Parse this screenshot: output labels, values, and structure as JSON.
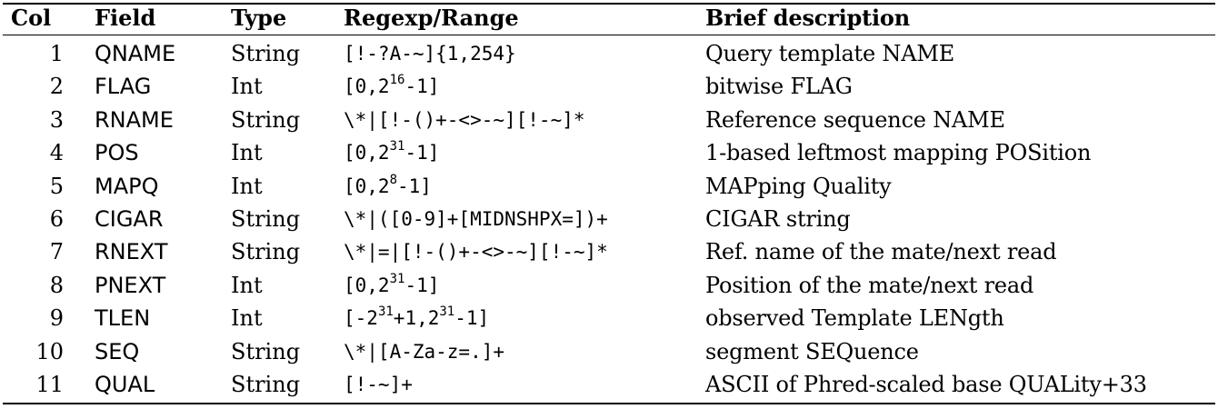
{
  "headers": {
    "col": "Col",
    "field": "Field",
    "type": "Type",
    "range": "Regexp/Range",
    "description": "Brief description"
  },
  "rows": [
    {
      "col": "1",
      "field": "QNAME",
      "type": "String",
      "range": "[!-?A-~]{1,254}",
      "description": "Query template NAME"
    },
    {
      "col": "2",
      "field": "FLAG",
      "type": "Int",
      "range": "[0,2^16-1]",
      "description": "bitwise FLAG"
    },
    {
      "col": "3",
      "field": "RNAME",
      "type": "String",
      "range": "\\*|[!-()+-<>-~][!-~]*",
      "description": "Reference sequence NAME"
    },
    {
      "col": "4",
      "field": "POS",
      "type": "Int",
      "range": "[0,2^31-1]",
      "description": "1-based leftmost mapping POSition"
    },
    {
      "col": "5",
      "field": "MAPQ",
      "type": "Int",
      "range": "[0,2^8-1]",
      "description": "MAPping Quality"
    },
    {
      "col": "6",
      "field": "CIGAR",
      "type": "String",
      "range": "\\*|([0-9]+[MIDNSHPX=])+",
      "description": "CIGAR string"
    },
    {
      "col": "7",
      "field": "RNEXT",
      "type": "String",
      "range": "\\*|=|[!-()+-<>-~][!-~]*",
      "description": "Ref. name of the mate/next read"
    },
    {
      "col": "8",
      "field": "PNEXT",
      "type": "Int",
      "range": "[0,2^31-1]",
      "description": "Position of the mate/next read"
    },
    {
      "col": "9",
      "field": "TLEN",
      "type": "Int",
      "range": "[-2^31+1,2^31-1]",
      "description": "observed Template LENgth"
    },
    {
      "col": "10",
      "field": "SEQ",
      "type": "String",
      "range": "\\*|[A-Za-z=.]+",
      "description": "segment SEQuence"
    },
    {
      "col": "11",
      "field": "QUAL",
      "type": "String",
      "range": "[!-~]+",
      "description": "ASCII of Phred-scaled base QUALity+33"
    }
  ]
}
